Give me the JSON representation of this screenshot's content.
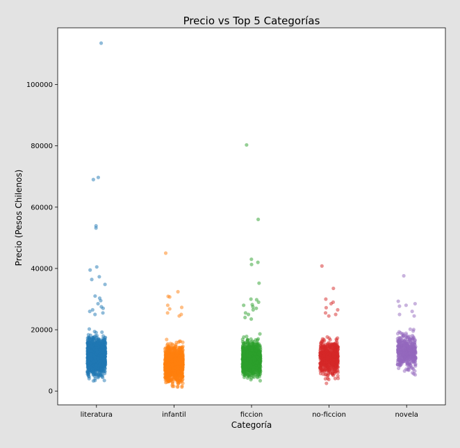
{
  "chart_data": {
    "type": "scatter",
    "style": "strip",
    "title": "Precio vs Top 5 Categorías",
    "xlabel": "Categoría",
    "ylabel": "Precio (Pesos Chilenos)",
    "ylim": [
      -4500,
      118500
    ],
    "yticks": [
      0,
      20000,
      40000,
      60000,
      80000,
      100000
    ],
    "ytick_labels": [
      "0",
      "20000",
      "40000",
      "60000",
      "80000",
      "100000"
    ],
    "grid": false,
    "legend": "none",
    "categories": [
      "literatura",
      "infantil",
      "ficcion",
      "no-ficcion",
      "novela"
    ],
    "series": [
      {
        "category": "literatura",
        "color": "#1f77b4",
        "bulk_range": [
          1000,
          24500
        ],
        "bulk_center": 11500,
        "bulk_count": 1400,
        "points": [
          113500,
          69700,
          69000,
          53900,
          53200,
          40500,
          39500,
          37300,
          36400,
          34800,
          31000,
          30300,
          29500,
          28500,
          27500,
          27000,
          26500,
          26000,
          25500,
          25000
        ]
      },
      {
        "category": "infantil",
        "color": "#ff7f0e",
        "bulk_range": [
          1000,
          24000
        ],
        "bulk_center": 9000,
        "bulk_count": 1300,
        "points": [
          45000,
          32400,
          30900,
          30700,
          28000,
          27300,
          26800,
          25500,
          25000,
          24500
        ]
      },
      {
        "category": "ficcion",
        "color": "#2ca02c",
        "bulk_range": [
          1500,
          23000
        ],
        "bulk_center": 10500,
        "bulk_count": 1100,
        "points": [
          80300,
          56000,
          43000,
          42000,
          41300,
          35200,
          30000,
          29800,
          29000,
          28200,
          28000,
          27500,
          27000,
          26500,
          25500,
          25000,
          24000,
          23500
        ]
      },
      {
        "category": "no-ficcion",
        "color": "#d62728",
        "bulk_range": [
          1500,
          24000
        ],
        "bulk_center": 11000,
        "bulk_count": 600,
        "points": [
          40800,
          33500,
          30000,
          29000,
          28500,
          27200,
          26500,
          25500,
          25000,
          24500
        ]
      },
      {
        "category": "novela",
        "color": "#9467bd",
        "bulk_range": [
          1500,
          24000
        ],
        "bulk_center": 13000,
        "bulk_count": 450,
        "points": [
          37600,
          29300,
          28500,
          28000,
          27700,
          26000,
          25000,
          24500
        ]
      }
    ]
  }
}
